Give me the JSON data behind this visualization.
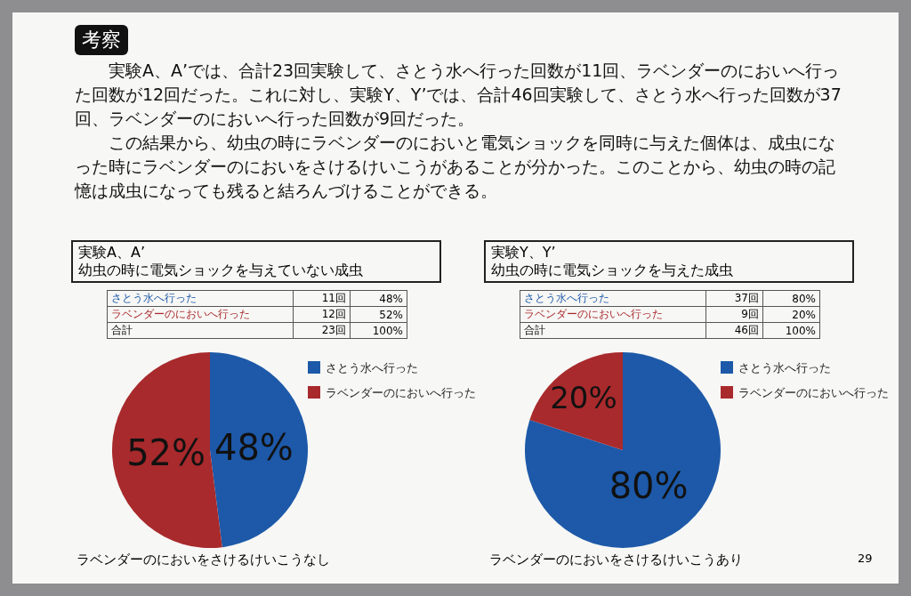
{
  "chart_data": [
    {
      "type": "other",
      "title": "考察",
      "annotations": [
        "実験A、A’では、合計23回実験して、さとう水へ行った回数が11回、ラベンダーのにおいへ行った回数が12回だった。これに対し、実験Y、Y’では、合計46回実験して、さとう水へ行った回数が37回、ラベンダーのにおいへ行った回数が9回だった。",
        "この結果から、幼虫の時にラベンダーのにおいと電気ショックを同時に与えた個体は、成虫になった時にラベンダーのにおいをさけるけいこうがあることが分かった。このことから、幼虫の時の記憶は成虫になっても残ると結ろんづけることができる。"
      ]
    },
    {
      "type": "pie",
      "title": "実験A、A’",
      "subtitle": "幼虫の時に電気ショックを与えていない成虫",
      "categories": [
        "さとう水へ行った",
        "ラベンダーのにおいへ行った"
      ],
      "values": [
        48,
        52
      ],
      "colors": [
        "#1d59a8",
        "#a82a2c"
      ],
      "value_labels": [
        "48%",
        "52%"
      ],
      "legend": "right",
      "annotations": [
        "さとう水へ行った\t11回\t48%",
        "ラベンダーのにおいへ行った\t12回\t52%",
        "合計\t23回\t100%",
        "ラベンダーのにおいをさけるけいこうなし"
      ]
    },
    {
      "type": "pie",
      "title": "実験Y、Y’",
      "subtitle": "幼虫の時に電気ショックを与えた成虫",
      "categories": [
        "さとう水へ行った",
        "ラベンダーのにおいへ行った"
      ],
      "values": [
        80,
        20
      ],
      "colors": [
        "#1d59a8",
        "#a82a2c"
      ],
      "value_labels": [
        "80%",
        "20%"
      ],
      "legend": "right",
      "annotations": [
        "さとう水へ行った\t37回\t80%",
        "ラベンダーのにおいへ行った\t9回\t20%",
        "合計\t46回\t100%",
        "ラベンダーのにおいをさけるけいこうあり",
        "29"
      ]
    }
  ]
}
